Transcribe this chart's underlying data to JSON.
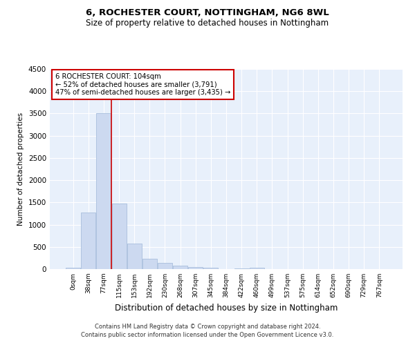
{
  "title1": "6, ROCHESTER COURT, NOTTINGHAM, NG6 8WL",
  "title2": "Size of property relative to detached houses in Nottingham",
  "xlabel": "Distribution of detached houses by size in Nottingham",
  "ylabel": "Number of detached properties",
  "bar_color": "#ccd9f0",
  "bar_edge_color": "#a8bedc",
  "bg_color": "#e8f0fb",
  "grid_color": "white",
  "annotation_box_color": "#cc0000",
  "vline_color": "#cc0000",
  "categories": [
    "0sqm",
    "38sqm",
    "77sqm",
    "115sqm",
    "153sqm",
    "192sqm",
    "230sqm",
    "268sqm",
    "307sqm",
    "345sqm",
    "384sqm",
    "422sqm",
    "460sqm",
    "499sqm",
    "537sqm",
    "575sqm",
    "614sqm",
    "652sqm",
    "690sqm",
    "729sqm",
    "767sqm"
  ],
  "values": [
    30,
    1280,
    3500,
    1480,
    580,
    240,
    140,
    80,
    50,
    30,
    5,
    20,
    30,
    0,
    0,
    0,
    0,
    0,
    0,
    0,
    0
  ],
  "ylim": [
    0,
    4500
  ],
  "yticks": [
    0,
    500,
    1000,
    1500,
    2000,
    2500,
    3000,
    3500,
    4000,
    4500
  ],
  "vline_x": 3,
  "annotation_text_line1": "6 ROCHESTER COURT: 104sqm",
  "annotation_text_line2": "← 52% of detached houses are smaller (3,791)",
  "annotation_text_line3": "47% of semi-detached houses are larger (3,435) →",
  "footer1": "Contains HM Land Registry data © Crown copyright and database right 2024.",
  "footer2": "Contains public sector information licensed under the Open Government Licence v3.0."
}
